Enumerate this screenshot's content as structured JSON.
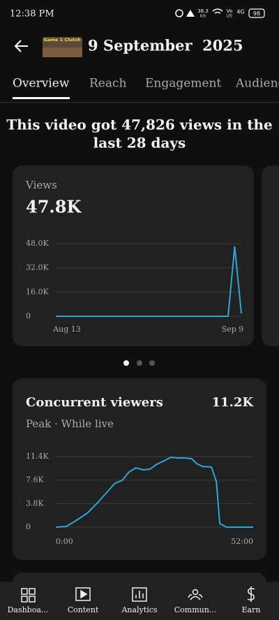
{
  "status_bar": {
    "time": "12:38 PM",
    "speed": "38.3",
    "speed_unit": "K/S",
    "volte": "Vo",
    "lte": "LTE",
    "network": "4G",
    "battery": "98"
  },
  "header": {
    "thumbnail_text": "Game 1 Clutch",
    "title": "9 September  2025"
  },
  "tabs": [
    "Overview",
    "Reach",
    "Engagement",
    "Audience"
  ],
  "summary": {
    "lines": [
      "This video got 47,826 views in the",
      "last 28 days"
    ]
  },
  "views_card": {
    "label": "Views",
    "value": "47.8K",
    "chart_data": {
      "type": "line",
      "categories": [
        null,
        null,
        "Aug 13",
        null,
        null,
        null,
        null,
        null,
        null,
        null,
        null,
        null,
        null,
        null,
        null,
        null,
        null,
        null,
        null,
        null,
        null,
        null,
        null,
        null,
        null,
        null,
        null,
        "Sep 9",
        null
      ],
      "series": [
        {
          "color": "#29a8d9",
          "values": [
            0,
            0,
            0,
            0,
            0,
            0,
            0,
            0,
            0,
            0,
            0,
            0,
            0,
            0,
            0,
            0,
            0,
            0,
            0,
            0,
            0,
            0,
            0,
            0,
            0,
            0,
            0,
            46000,
            1800
          ]
        }
      ],
      "ylim": [
        0,
        48000
      ],
      "yticks": [
        0,
        {
          "value": 16000,
          "label": "16.0K"
        },
        {
          "value": 32000,
          "label": "32.0K"
        },
        {
          "value": 48000,
          "label": "48.0K"
        }
      ],
      "grid": true
    }
  },
  "concurrent_card": {
    "title": "Concurrent viewers",
    "peak": "11.2K",
    "subtitle": "Peak · While live",
    "chart_data": {
      "type": "line",
      "x": [
        0,
        2.8,
        5.5,
        8.3,
        11,
        13.8,
        15.6,
        17.5,
        19.3,
        21.1,
        23,
        24.8,
        26.6,
        28.5,
        30.3,
        32.2,
        34,
        35.8,
        37.1,
        38.6,
        41,
        42.3,
        43.2,
        45,
        48.7,
        52
      ],
      "series": [
        {
          "color": "#29a8d9",
          "values": [
            0,
            110,
            1130,
            2260,
            3950,
            5870,
            7110,
            7560,
            8920,
            9590,
            9260,
            9370,
            10160,
            10720,
            11290,
            11170,
            11170,
            11060,
            10270,
            9820,
            9710,
            7340,
            560,
            0,
            0,
            0
          ]
        }
      ],
      "xlim": [
        0,
        52
      ],
      "xticks": [
        {
          "value": 0,
          "label": "0:00"
        },
        {
          "value": 52,
          "label": "52:00"
        }
      ],
      "ylim": [
        0,
        11400
      ],
      "yticks": [
        0,
        {
          "value": 3800,
          "label": "3.8K"
        },
        {
          "value": 7600,
          "label": "7.6K"
        },
        {
          "value": 11400,
          "label": "11.4K"
        }
      ],
      "grid": true
    }
  },
  "bottom_nav": [
    "Dashboa...",
    "Content",
    "Analytics",
    "Commun...",
    "Earn"
  ]
}
